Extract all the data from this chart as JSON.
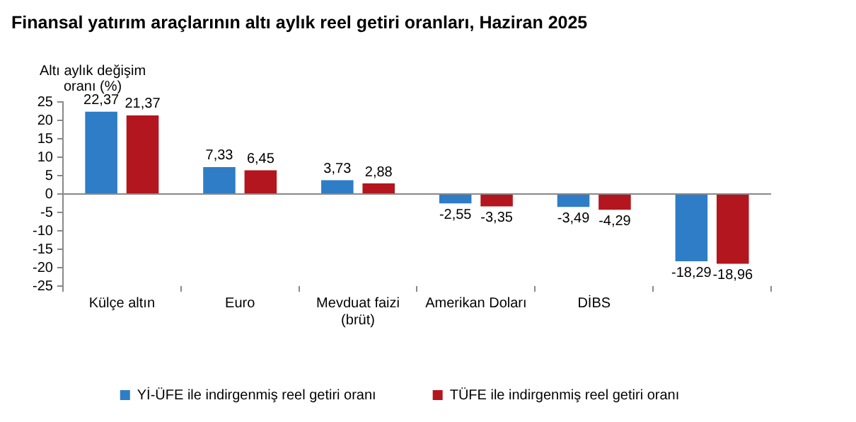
{
  "chart_data": {
    "type": "bar",
    "title": "Finansal yatırım araçlarının altı aylık reel getiri oranları, Haziran 2025",
    "ylabel": "Altı aylık değişim\noranı (%)",
    "categories": [
      "Külçe altın",
      "Euro",
      "Mevduat faizi\n(brüt)",
      "Amerikan Doları",
      "DİBS",
      null
    ],
    "series": [
      {
        "name": "Yİ-ÜFE ile indirgenmiş reel getiri oranı",
        "color": "#2e7dc6",
        "values": [
          22.37,
          7.33,
          3.73,
          -2.55,
          -3.49,
          -18.29
        ],
        "value_labels": [
          "22,37",
          "7,33",
          "3,73",
          "-2,55",
          "-3,49",
          "-18,29"
        ]
      },
      {
        "name": "TÜFE ile indirgenmiş reel getiri oranı",
        "color": "#b3161e",
        "values": [
          21.37,
          6.45,
          2.88,
          -3.35,
          -4.29,
          -18.96
        ],
        "value_labels": [
          "21,37",
          "6,45",
          "2,88",
          "-3,35",
          "-4,29",
          "-18,96"
        ]
      }
    ],
    "ylim": [
      -25,
      25
    ],
    "yticks": [
      -25,
      -20,
      -15,
      -10,
      -5,
      0,
      5,
      10,
      15,
      20,
      25
    ],
    "legend": "bottom"
  }
}
